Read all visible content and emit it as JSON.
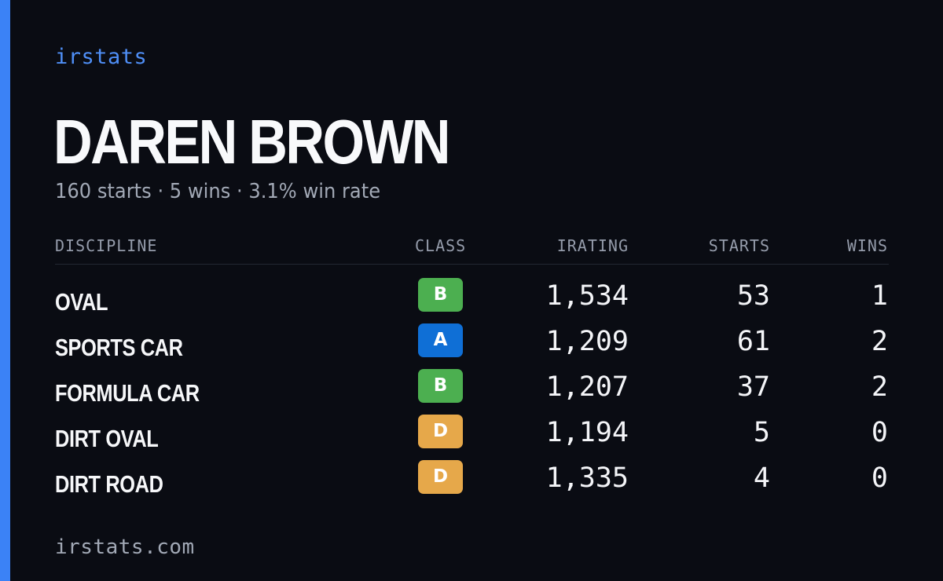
{
  "brand": "irstats",
  "driver": {
    "name": "DAREN BROWN",
    "summary": "160 starts · 5 wins · 3.1% win rate"
  },
  "table": {
    "headers": {
      "discipline": "DISCIPLINE",
      "class": "CLASS",
      "irating": "IRATING",
      "starts": "STARTS",
      "wins": "WINS"
    },
    "rows": [
      {
        "discipline": "OVAL",
        "class": "B",
        "irating": "1,534",
        "starts": "53",
        "wins": "1"
      },
      {
        "discipline": "SPORTS CAR",
        "class": "A",
        "irating": "1,209",
        "starts": "61",
        "wins": "2"
      },
      {
        "discipline": "FORMULA CAR",
        "class": "B",
        "irating": "1,207",
        "starts": "37",
        "wins": "2"
      },
      {
        "discipline": "DIRT OVAL",
        "class": "D",
        "irating": "1,194",
        "starts": "5",
        "wins": "0"
      },
      {
        "discipline": "DIRT ROAD",
        "class": "D",
        "irating": "1,335",
        "starts": "4",
        "wins": "0"
      }
    ]
  },
  "class_colors": {
    "A": "#0f6fd6",
    "B": "#4caf50",
    "D": "#e6a84a"
  },
  "accent_color": "#3b82f6",
  "footer": "irstats.com"
}
